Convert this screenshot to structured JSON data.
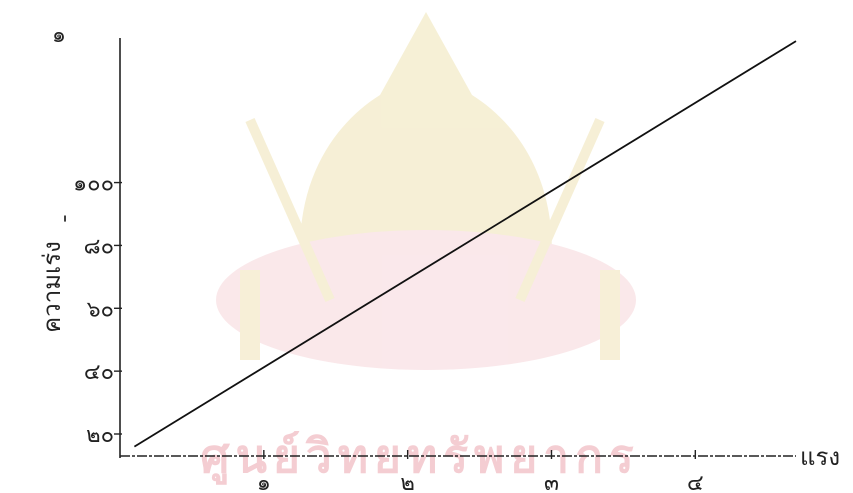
{
  "page_number": "๑",
  "watermark": {
    "text": "ศูนย์วิทยทรัพยากร",
    "color": "#f4cdd2",
    "emblem_color": "#f1e9c4"
  },
  "chart_data": {
    "type": "line",
    "title": "",
    "xlabel": "แรง",
    "ylabel": "ความเร่ง",
    "x_ticks": [
      {
        "value": 1,
        "label": "๑"
      },
      {
        "value": 2,
        "label": "๒"
      },
      {
        "value": 3,
        "label": "๓"
      },
      {
        "value": 4,
        "label": "๔"
      }
    ],
    "y_ticks": [
      {
        "value": 20,
        "label": "๒๐"
      },
      {
        "value": 40,
        "label": "๔๐"
      },
      {
        "value": 60,
        "label": "๖๐"
      },
      {
        "value": 80,
        "label": "๘๐"
      },
      {
        "value": 100,
        "label": "๑๐๐"
      }
    ],
    "xlim": [
      0,
      4.7
    ],
    "ylim": [
      13,
      146
    ],
    "series": [
      {
        "values": [
          [
            0.1,
            16
          ],
          [
            4.7,
            145
          ]
        ]
      }
    ],
    "grid": false,
    "line_color": "#111111"
  }
}
